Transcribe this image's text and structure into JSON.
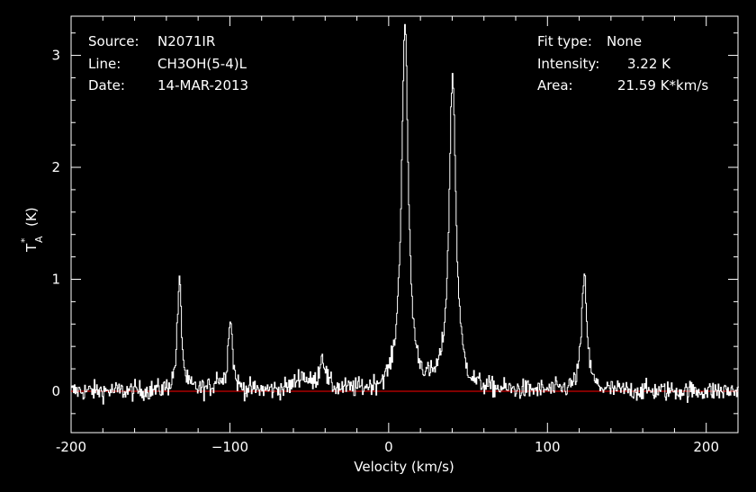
{
  "header": {
    "left": [
      {
        "key": "Source:",
        "value": "N2071IR"
      },
      {
        "key": "Line:",
        "value": "CH3OH(5-4)L"
      },
      {
        "key": "Date:",
        "value": "14-MAR-2013"
      }
    ],
    "right": [
      {
        "key": "Fit type:",
        "value": "None"
      },
      {
        "key": "Intensity:",
        "value": "3.22 K"
      },
      {
        "key": "Area:",
        "value": "21.59 K*km/s"
      }
    ]
  },
  "colors": {
    "background": "#000000",
    "foreground": "#ffffff",
    "baseline": "#ff0000"
  },
  "chart_data": {
    "type": "line",
    "title": "",
    "xlabel": "Velocity (km/s)",
    "ylabel_main": "T",
    "ylabel_sup": "*",
    "ylabel_sub": "A",
    "ylabel_unit": "(K)",
    "xlim": [
      -200,
      220
    ],
    "ylim": [
      -0.37,
      3.35
    ],
    "xticks": [
      -200,
      -100,
      0,
      100,
      200
    ],
    "xtick_labels": [
      "-200",
      "−100",
      "0",
      "100",
      "200"
    ],
    "yticks": [
      0,
      1,
      2,
      3
    ],
    "ytick_labels": [
      "0",
      "1",
      "2",
      "3"
    ],
    "baseline": 0,
    "grid": false,
    "noise_rms": 0.045,
    "components": [
      {
        "center": -132,
        "amplitude": 0.98,
        "width": 1.6
      },
      {
        "center": -108,
        "amplitude": 0.1,
        "width": 2.0
      },
      {
        "center": -100,
        "amplitude": 0.66,
        "width": 1.6
      },
      {
        "center": -55,
        "amplitude": 0.13,
        "width": 4.5
      },
      {
        "center": -42,
        "amplitude": 0.3,
        "width": 2.2
      },
      {
        "center": 10,
        "amplitude": 3.22,
        "width": 2.6
      },
      {
        "center": 40,
        "amplitude": 2.8,
        "width": 2.6
      },
      {
        "center": 123,
        "amplitude": 1.02,
        "width": 2.0
      }
    ]
  }
}
